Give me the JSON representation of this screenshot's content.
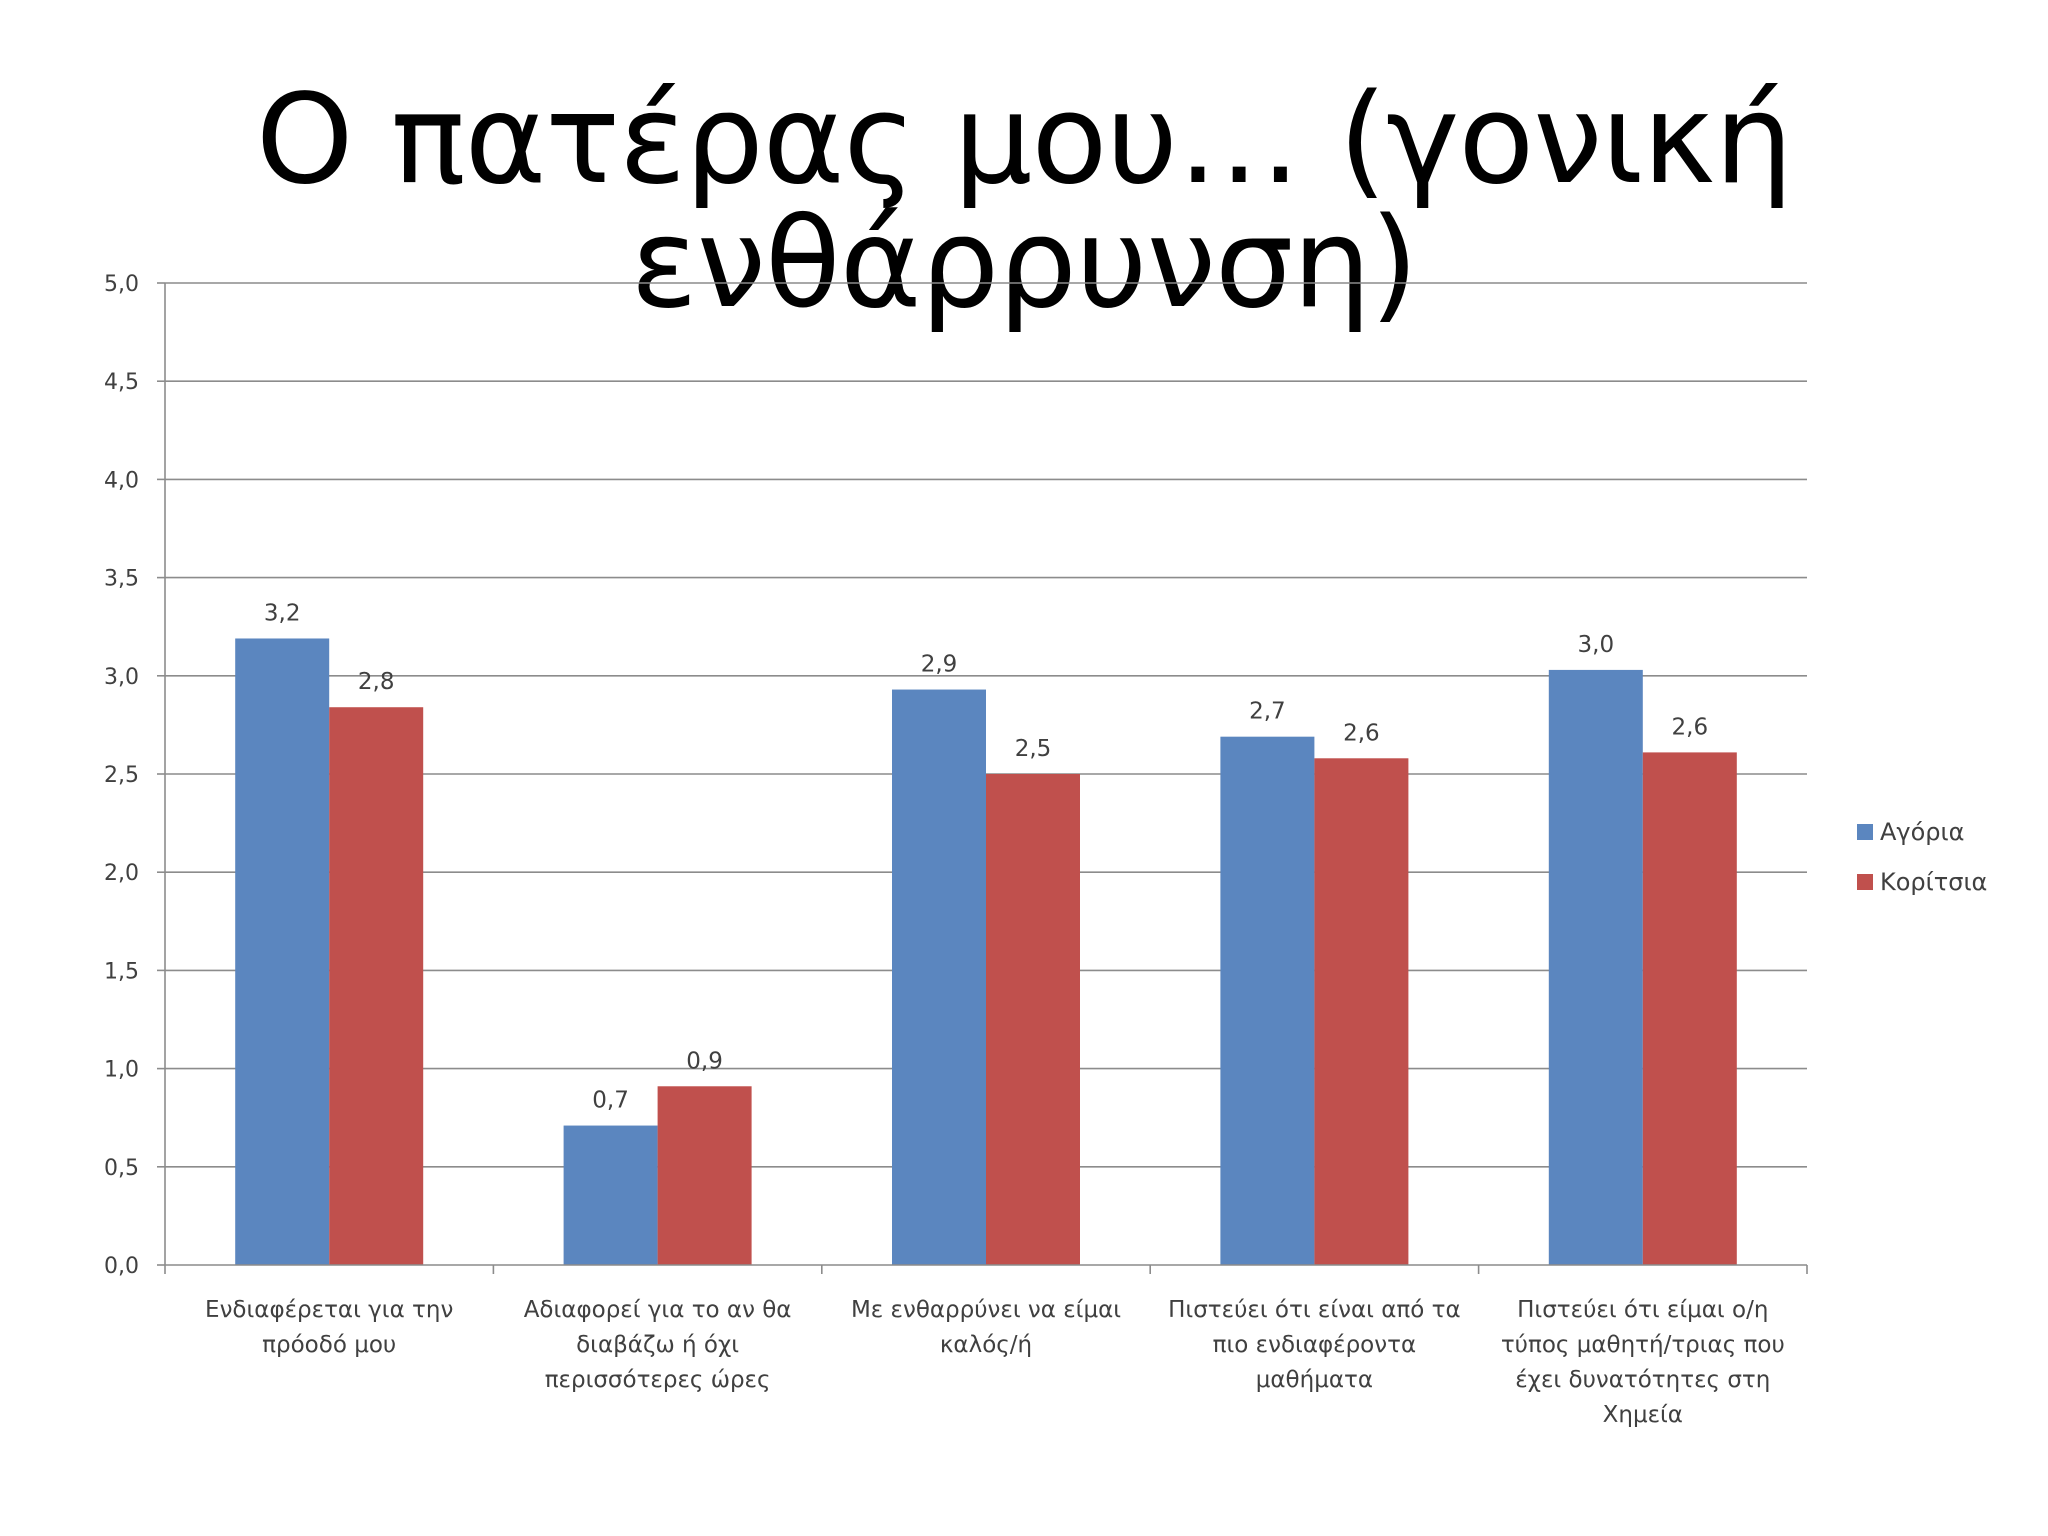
{
  "title": "Ο πατέρας μου… (γονική ενθάρρυνση)",
  "colors": {
    "Αγόρια": "#5b86bf",
    "Κορίτσια": "#c0504d",
    "grid": "#8c8c8c",
    "axis": "#8c8c8c",
    "text": "#404040"
  },
  "chart_data": {
    "type": "bar",
    "categories": [
      [
        "Ενδιαφέρεται για την",
        "πρόοδό μου"
      ],
      [
        "Αδιαφορεί για το αν θα",
        "διαβάζω ή όχι",
        "περισσότερες ώρες"
      ],
      [
        "Με ενθαρρύνει να είμαι",
        "καλός/ή"
      ],
      [
        "Πιστεύει ότι είναι από τα",
        "πιο ενδιαφέροντα",
        "μαθήματα"
      ],
      [
        "Πιστεύει ότι είμαι ο/η",
        "τύπος μαθητή/τριας που",
        "έχει δυνατότητες στη",
        "Χημεία"
      ]
    ],
    "series": [
      {
        "name": "Αγόρια",
        "values": [
          3.19,
          0.71,
          2.93,
          2.69,
          3.03
        ],
        "labels": [
          "3,2",
          "0,7",
          "2,9",
          "2,7",
          "3,0"
        ]
      },
      {
        "name": "Κορίτσια",
        "values": [
          2.84,
          0.91,
          2.5,
          2.58,
          2.61
        ],
        "labels": [
          "2,8",
          "0,9",
          "2,5",
          "2,6",
          "2,6"
        ]
      }
    ],
    "yticks": [
      "0,0",
      "0,5",
      "1,0",
      "1,5",
      "2,0",
      "2,5",
      "3,0",
      "3,5",
      "4,0",
      "4,5",
      "5,0"
    ],
    "ylim": [
      0,
      5
    ],
    "grid": true,
    "legend": "right"
  }
}
